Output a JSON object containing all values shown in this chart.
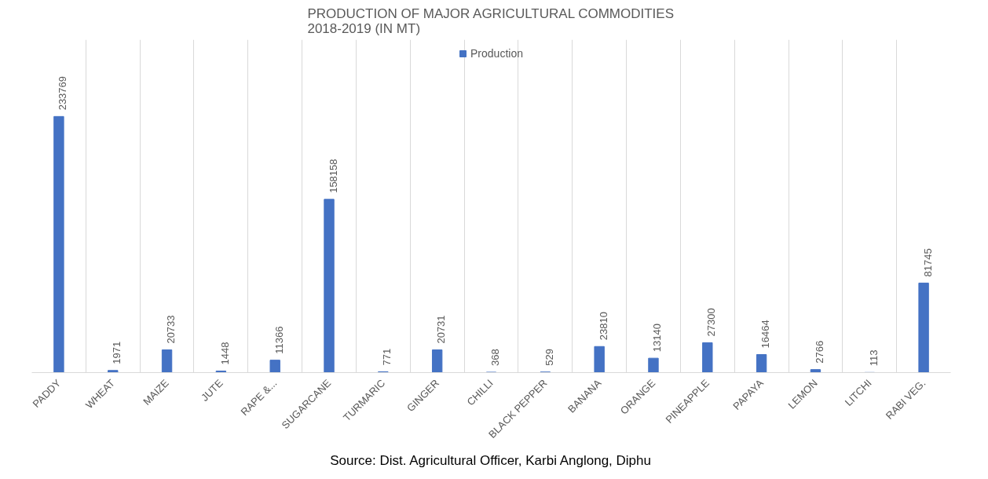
{
  "chart_data": {
    "type": "bar",
    "title": "PRODUCTION OF MAJOR AGRICULTURAL COMMODITIES\n2018-2019 (IN MT)",
    "categories": [
      "PADDY",
      "WHEAT",
      "MAIZE",
      "JUTE",
      "RAPE &...",
      "SUGARCANE",
      "TURMARIC",
      "GINGER",
      "CHILLI",
      "BLACK PEPPER",
      "BANANA",
      "ORANGE",
      "PINEAPPLE",
      "PAPAYA",
      "LEMON",
      "LITCHI",
      "RABI VEG."
    ],
    "series": [
      {
        "name": "Production",
        "color": "#4472c4",
        "values": [
          233769,
          1971,
          20733,
          1448,
          11366,
          158158,
          771,
          20731,
          368,
          529,
          23810,
          13140,
          27300,
          16464,
          2766,
          113,
          81745
        ]
      }
    ],
    "data_labels": true,
    "grid": "x",
    "legend": "top",
    "annotations": [
      "Source: Dist. Agricultural Officer, Karbi Anglong, Diphu"
    ]
  }
}
